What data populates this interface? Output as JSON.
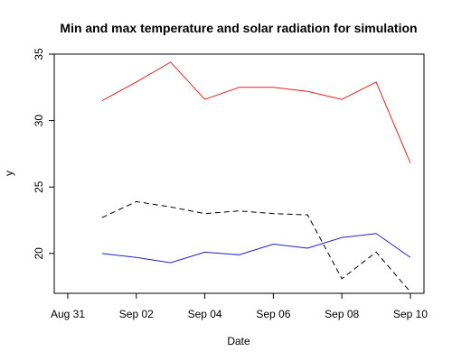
{
  "chart_data": {
    "type": "line",
    "title": "Min and max temperature and solar radiation for simulation",
    "xlabel": "Date",
    "ylabel": "y",
    "x": [
      "2023-09-01",
      "2023-09-02",
      "2023-09-03",
      "2023-09-04",
      "2023-09-05",
      "2023-09-06",
      "2023-09-07",
      "2023-09-08",
      "2023-09-09",
      "2023-09-10"
    ],
    "xlim": [
      "2023-08-31",
      "2023-09-10"
    ],
    "xticks": [
      "2023-08-31",
      "2023-09-02",
      "2023-09-04",
      "2023-09-06",
      "2023-09-08",
      "2023-09-10"
    ],
    "xtick_labels": [
      "Aug 31",
      "Sep 02",
      "Sep 04",
      "Sep 06",
      "Sep 08",
      "Sep 10"
    ],
    "ylim": [
      17,
      35
    ],
    "yticks": [
      20,
      25,
      30,
      35
    ],
    "ytick_labels": [
      "20",
      "25",
      "30",
      "35"
    ],
    "grid": false,
    "series": [
      {
        "values": [
          31.5,
          32.9,
          34.4,
          31.6,
          32.5,
          32.5,
          32.2,
          31.6,
          32.9,
          26.8
        ],
        "color": "#e02020",
        "dash": "solid"
      },
      {
        "values": [
          22.7,
          23.9,
          23.5,
          23.0,
          23.2,
          23.0,
          22.9,
          18.1,
          20.1,
          17.1
        ],
        "color": "#000000",
        "dash": "dashed"
      },
      {
        "values": [
          20.0,
          19.7,
          19.3,
          20.1,
          19.9,
          20.7,
          20.4,
          21.2,
          21.5,
          19.7
        ],
        "color": "#2020c0",
        "dash": "solid"
      }
    ]
  }
}
